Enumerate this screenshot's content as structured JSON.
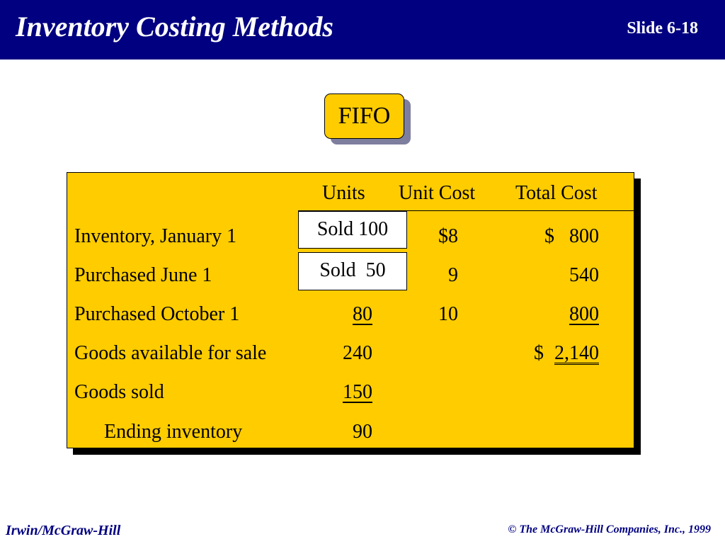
{
  "header": {
    "title": "Inventory Costing Methods",
    "slide_number": "Slide 6-18"
  },
  "method_label": "FIFO",
  "table": {
    "columns": [
      "Units",
      "Unit Cost",
      "Total Cost"
    ],
    "rows": [
      {
        "label": "Inventory, January 1",
        "units": "",
        "unit_cost": "$8",
        "total_cost": "$   800"
      },
      {
        "label": "Purchased June 1",
        "units": "",
        "unit_cost": "9",
        "total_cost": "540"
      },
      {
        "label": "Purchased October 1",
        "units": "80",
        "unit_cost": "10",
        "total_cost": "800"
      },
      {
        "label": "Goods available for sale",
        "units": "240",
        "unit_cost": "",
        "total_cost_prefix": "$",
        "total_cost": "2,140"
      },
      {
        "label": "Goods sold",
        "units": "150",
        "unit_cost": "",
        "total_cost": ""
      },
      {
        "label": "Ending inventory",
        "units": "90",
        "unit_cost": "",
        "total_cost": ""
      }
    ],
    "callouts": [
      "Sold 100",
      "Sold  50"
    ]
  },
  "footer": {
    "publisher": "Irwin/McGraw-Hill",
    "copyright": "© The McGraw-Hill Companies, Inc., 1999"
  },
  "colors": {
    "header_bg": "#000080",
    "panel_bg": "#ffcc00",
    "footer_text": "#000080"
  }
}
